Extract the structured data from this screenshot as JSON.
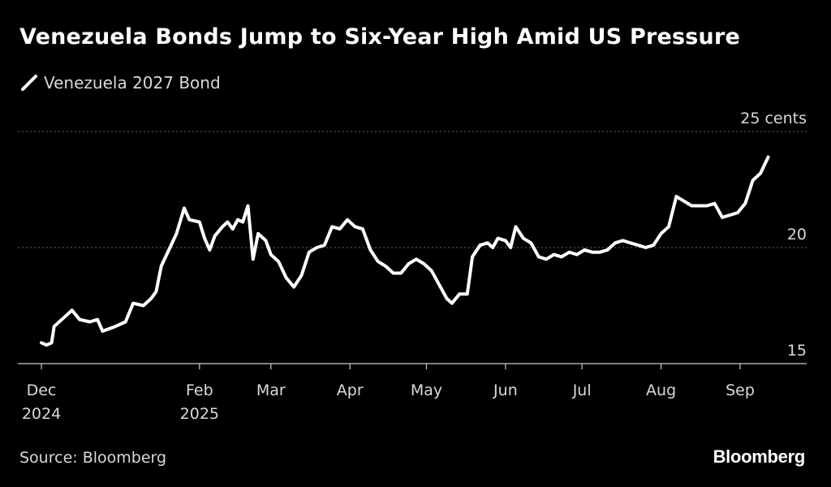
{
  "header": {
    "title": "Venezuela Bonds Jump to Six-Year High Amid US Pressure"
  },
  "legend": {
    "label": "Venezuela 2027 Bond"
  },
  "footer": {
    "source": "Source: Bloomberg",
    "brand": "Bloomberg"
  },
  "colors": {
    "background": "#000000",
    "line": "#ffffff",
    "text": "#d9d9d9",
    "grid": "#666666"
  },
  "chart_data": {
    "type": "line",
    "title": "Venezuela Bonds Jump to Six-Year High Amid US Pressure",
    "xlabel": "",
    "ylabel": "",
    "ylim": [
      15,
      25
    ],
    "xlim": [
      "2024-12-01",
      "2025-09-30"
    ],
    "y_unit": "cents",
    "y_ticks": [
      {
        "value": 15,
        "label": "15"
      },
      {
        "value": 20,
        "label": "20"
      },
      {
        "value": 25,
        "label": "25 cents"
      }
    ],
    "x_ticks": [
      {
        "date": "2024-12-01",
        "label": "Dec",
        "sublabel": "2024"
      },
      {
        "date": "2025-02-01",
        "label": "Feb",
        "sublabel": "2025"
      },
      {
        "date": "2025-03-01",
        "label": "Mar",
        "sublabel": ""
      },
      {
        "date": "2025-04-01",
        "label": "Apr",
        "sublabel": ""
      },
      {
        "date": "2025-05-01",
        "label": "May",
        "sublabel": ""
      },
      {
        "date": "2025-06-01",
        "label": "Jun",
        "sublabel": ""
      },
      {
        "date": "2025-07-01",
        "label": "Jul",
        "sublabel": ""
      },
      {
        "date": "2025-08-01",
        "label": "Aug",
        "sublabel": ""
      },
      {
        "date": "2025-09-01",
        "label": "Sep",
        "sublabel": ""
      }
    ],
    "grid": true,
    "legend_position": "top-left",
    "series": [
      {
        "name": "Venezuela 2027 Bond",
        "color": "#ffffff",
        "points": [
          [
            "2024-12-01",
            15.9
          ],
          [
            "2024-12-03",
            15.8
          ],
          [
            "2024-12-05",
            15.9
          ],
          [
            "2024-12-06",
            16.6
          ],
          [
            "2024-12-10",
            17.0
          ],
          [
            "2024-12-13",
            17.3
          ],
          [
            "2024-12-16",
            16.9
          ],
          [
            "2024-12-20",
            16.8
          ],
          [
            "2024-12-23",
            16.9
          ],
          [
            "2024-12-25",
            16.4
          ],
          [
            "2024-12-30",
            16.6
          ],
          [
            "2025-01-03",
            16.8
          ],
          [
            "2025-01-06",
            17.6
          ],
          [
            "2025-01-10",
            17.5
          ],
          [
            "2025-01-13",
            17.8
          ],
          [
            "2025-01-15",
            18.1
          ],
          [
            "2025-01-17",
            19.2
          ],
          [
            "2025-01-20",
            19.9
          ],
          [
            "2025-01-23",
            20.6
          ],
          [
            "2025-01-26",
            21.7
          ],
          [
            "2025-01-28",
            21.2
          ],
          [
            "2025-02-01",
            21.1
          ],
          [
            "2025-02-03",
            20.4
          ],
          [
            "2025-02-05",
            19.9
          ],
          [
            "2025-02-07",
            20.5
          ],
          [
            "2025-02-10",
            20.9
          ],
          [
            "2025-02-12",
            21.1
          ],
          [
            "2025-02-14",
            20.8
          ],
          [
            "2025-02-16",
            21.2
          ],
          [
            "2025-02-18",
            21.1
          ],
          [
            "2025-02-20",
            21.8
          ],
          [
            "2025-02-22",
            19.5
          ],
          [
            "2025-02-24",
            20.6
          ],
          [
            "2025-02-27",
            20.3
          ],
          [
            "2025-03-01",
            19.7
          ],
          [
            "2025-03-04",
            19.4
          ],
          [
            "2025-03-07",
            18.7
          ],
          [
            "2025-03-10",
            18.3
          ],
          [
            "2025-03-13",
            18.8
          ],
          [
            "2025-03-16",
            19.8
          ],
          [
            "2025-03-19",
            20.0
          ],
          [
            "2025-03-22",
            20.1
          ],
          [
            "2025-03-25",
            20.9
          ],
          [
            "2025-03-28",
            20.8
          ],
          [
            "2025-03-31",
            21.2
          ],
          [
            "2025-04-03",
            20.9
          ],
          [
            "2025-04-06",
            20.8
          ],
          [
            "2025-04-09",
            19.9
          ],
          [
            "2025-04-12",
            19.4
          ],
          [
            "2025-04-15",
            19.2
          ],
          [
            "2025-04-18",
            18.9
          ],
          [
            "2025-04-21",
            18.9
          ],
          [
            "2025-04-24",
            19.3
          ],
          [
            "2025-04-27",
            19.5
          ],
          [
            "2025-04-30",
            19.3
          ],
          [
            "2025-05-03",
            19.0
          ],
          [
            "2025-05-06",
            18.4
          ],
          [
            "2025-05-09",
            17.8
          ],
          [
            "2025-05-11",
            17.6
          ],
          [
            "2025-05-14",
            18.0
          ],
          [
            "2025-05-17",
            18.0
          ],
          [
            "2025-05-19",
            19.6
          ],
          [
            "2025-05-22",
            20.1
          ],
          [
            "2025-05-25",
            20.2
          ],
          [
            "2025-05-27",
            20.0
          ],
          [
            "2025-05-29",
            20.4
          ],
          [
            "2025-06-01",
            20.3
          ],
          [
            "2025-06-03",
            20.0
          ],
          [
            "2025-06-05",
            20.9
          ],
          [
            "2025-06-08",
            20.4
          ],
          [
            "2025-06-11",
            20.2
          ],
          [
            "2025-06-14",
            19.6
          ],
          [
            "2025-06-17",
            19.5
          ],
          [
            "2025-06-20",
            19.7
          ],
          [
            "2025-06-23",
            19.6
          ],
          [
            "2025-06-26",
            19.8
          ],
          [
            "2025-06-29",
            19.7
          ],
          [
            "2025-07-02",
            19.9
          ],
          [
            "2025-07-05",
            19.8
          ],
          [
            "2025-07-08",
            19.8
          ],
          [
            "2025-07-11",
            19.9
          ],
          [
            "2025-07-14",
            20.2
          ],
          [
            "2025-07-17",
            20.3
          ],
          [
            "2025-07-20",
            20.2
          ],
          [
            "2025-07-23",
            20.1
          ],
          [
            "2025-07-26",
            20.0
          ],
          [
            "2025-07-29",
            20.1
          ],
          [
            "2025-08-01",
            20.6
          ],
          [
            "2025-08-04",
            20.9
          ],
          [
            "2025-08-07",
            22.2
          ],
          [
            "2025-08-10",
            22.0
          ],
          [
            "2025-08-13",
            21.8
          ],
          [
            "2025-08-16",
            21.8
          ],
          [
            "2025-08-19",
            21.8
          ],
          [
            "2025-08-22",
            21.9
          ],
          [
            "2025-08-25",
            21.3
          ],
          [
            "2025-08-28",
            21.4
          ],
          [
            "2025-08-31",
            21.5
          ],
          [
            "2025-09-03",
            21.9
          ],
          [
            "2025-09-06",
            22.9
          ],
          [
            "2025-09-09",
            23.2
          ],
          [
            "2025-09-12",
            23.9
          ]
        ]
      }
    ]
  }
}
